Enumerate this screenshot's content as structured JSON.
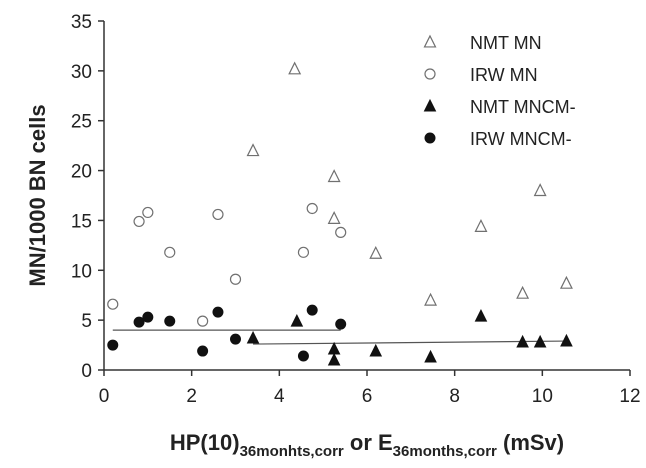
{
  "chart_data": {
    "type": "scatter",
    "title": "",
    "xlabel": {
      "parts": [
        {
          "text": "HP(10)",
          "sub": false
        },
        {
          "text": "36monhts,corr",
          "sub": true
        },
        {
          "text": " or E",
          "sub": false
        },
        {
          "text": "36months,corr",
          "sub": true
        },
        {
          "text": " (mSv)",
          "sub": false
        }
      ]
    },
    "ylabel": "MN/1000 BN cells",
    "xlim": [
      0,
      12
    ],
    "ylim": [
      0,
      35
    ],
    "xticks": [
      "0",
      "2",
      "4",
      "6",
      "8",
      "10",
      "12"
    ],
    "yticks": [
      "0",
      "5",
      "10",
      "15",
      "20",
      "25",
      "30",
      "35"
    ],
    "grid": false,
    "legend_position": "top-right",
    "series": [
      {
        "name": "NMT MN",
        "marker": "triangle-open",
        "color": "#707070",
        "points": [
          [
            3.4,
            22.0
          ],
          [
            4.35,
            30.2
          ],
          [
            5.25,
            19.4
          ],
          [
            5.25,
            15.2
          ],
          [
            6.2,
            11.7
          ],
          [
            7.45,
            7.0
          ],
          [
            8.6,
            14.4
          ],
          [
            9.55,
            7.7
          ],
          [
            9.95,
            18.0
          ],
          [
            10.55,
            8.7
          ]
        ]
      },
      {
        "name": "IRW MN",
        "marker": "circle-open",
        "color": "#707070",
        "points": [
          [
            0.2,
            6.6
          ],
          [
            0.8,
            14.9
          ],
          [
            1.0,
            15.8
          ],
          [
            1.5,
            11.8
          ],
          [
            2.25,
            4.9
          ],
          [
            2.6,
            15.6
          ],
          [
            3.0,
            9.1
          ],
          [
            4.55,
            11.8
          ],
          [
            4.75,
            16.2
          ],
          [
            5.4,
            13.8
          ]
        ]
      },
      {
        "name": "NMT MNCM-",
        "marker": "triangle-filled",
        "color": "#111111",
        "points": [
          [
            3.4,
            3.2
          ],
          [
            4.4,
            4.9
          ],
          [
            5.25,
            2.1
          ],
          [
            5.25,
            1.0
          ],
          [
            6.2,
            1.9
          ],
          [
            7.45,
            1.3
          ],
          [
            8.6,
            5.4
          ],
          [
            9.55,
            2.8
          ],
          [
            9.95,
            2.8
          ],
          [
            10.55,
            2.9
          ]
        ]
      },
      {
        "name": "IRW MNCM-",
        "marker": "circle-filled",
        "color": "#111111",
        "points": [
          [
            0.2,
            2.5
          ],
          [
            0.8,
            4.8
          ],
          [
            1.0,
            5.3
          ],
          [
            1.5,
            4.9
          ],
          [
            2.25,
            1.9
          ],
          [
            2.6,
            5.8
          ],
          [
            3.0,
            3.1
          ],
          [
            4.55,
            1.4
          ],
          [
            4.75,
            6.0
          ],
          [
            5.4,
            4.6
          ]
        ]
      }
    ],
    "fit_lines": [
      {
        "series": "IRW MNCM-",
        "x": [
          0.2,
          5.4
        ],
        "y": [
          4.0,
          4.0
        ]
      },
      {
        "series": "NMT MNCM-",
        "x": [
          3.4,
          10.55
        ],
        "y": [
          2.6,
          2.9
        ]
      }
    ]
  }
}
